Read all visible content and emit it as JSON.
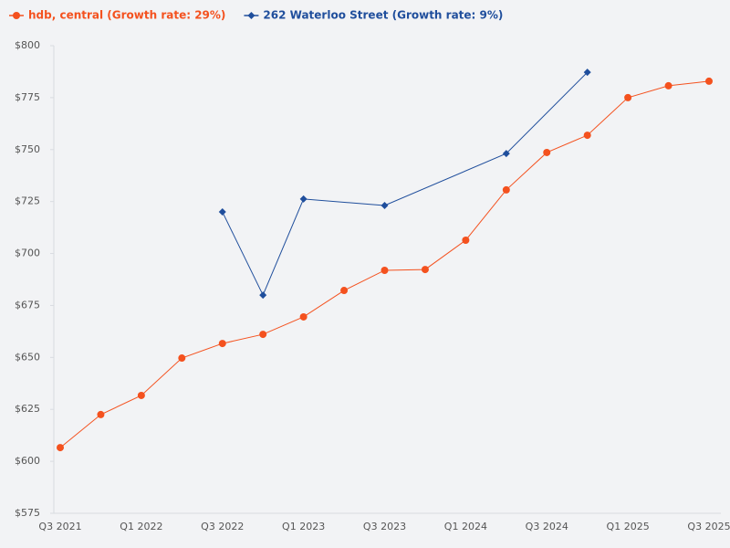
{
  "chart_data": {
    "type": "line",
    "categories": [
      "Q3 2021",
      null,
      "Q1 2022",
      null,
      "Q3 2022",
      null,
      "Q1 2023",
      null,
      "Q3 2023",
      null,
      "Q1 2024",
      null,
      "Q3 2024",
      null,
      "Q1 2025",
      null,
      "Q3 2025"
    ],
    "series": [
      {
        "name": "hdb, central (Growth rate: 29%)",
        "color": "#f4511e",
        "marker": "circle",
        "values": [
          606.6,
          622.5,
          631.7,
          649.7,
          656.7,
          661.1,
          669.5,
          682.2,
          691.9,
          692.3,
          706.4,
          730.6,
          748.6,
          756.9,
          775.0,
          780.7,
          782.9
        ]
      },
      {
        "name": "262 Waterloo Street (Growth rate: 9%)",
        "color": "#1f4e9c",
        "marker": "diamond",
        "values": [
          null,
          null,
          null,
          null,
          720.0,
          680.0,
          726.2,
          null,
          723.1,
          null,
          null,
          748.1,
          null,
          787.2,
          null,
          null,
          null
        ]
      }
    ],
    "span_gaps": true,
    "ylim": [
      575,
      800
    ],
    "yticks": [
      {
        "value": 575,
        "label": "$575"
      },
      {
        "value": 600,
        "label": "$600"
      },
      {
        "value": 625,
        "label": "$625"
      },
      {
        "value": 650,
        "label": "$650"
      },
      {
        "value": 675,
        "label": "$675"
      },
      {
        "value": 700,
        "label": "$700"
      },
      {
        "value": 725,
        "label": "$725"
      },
      {
        "value": 750,
        "label": "$750"
      },
      {
        "value": 775,
        "label": "$775"
      },
      {
        "value": 800,
        "label": "$800"
      }
    ],
    "grid": false,
    "legend": "top-left"
  }
}
